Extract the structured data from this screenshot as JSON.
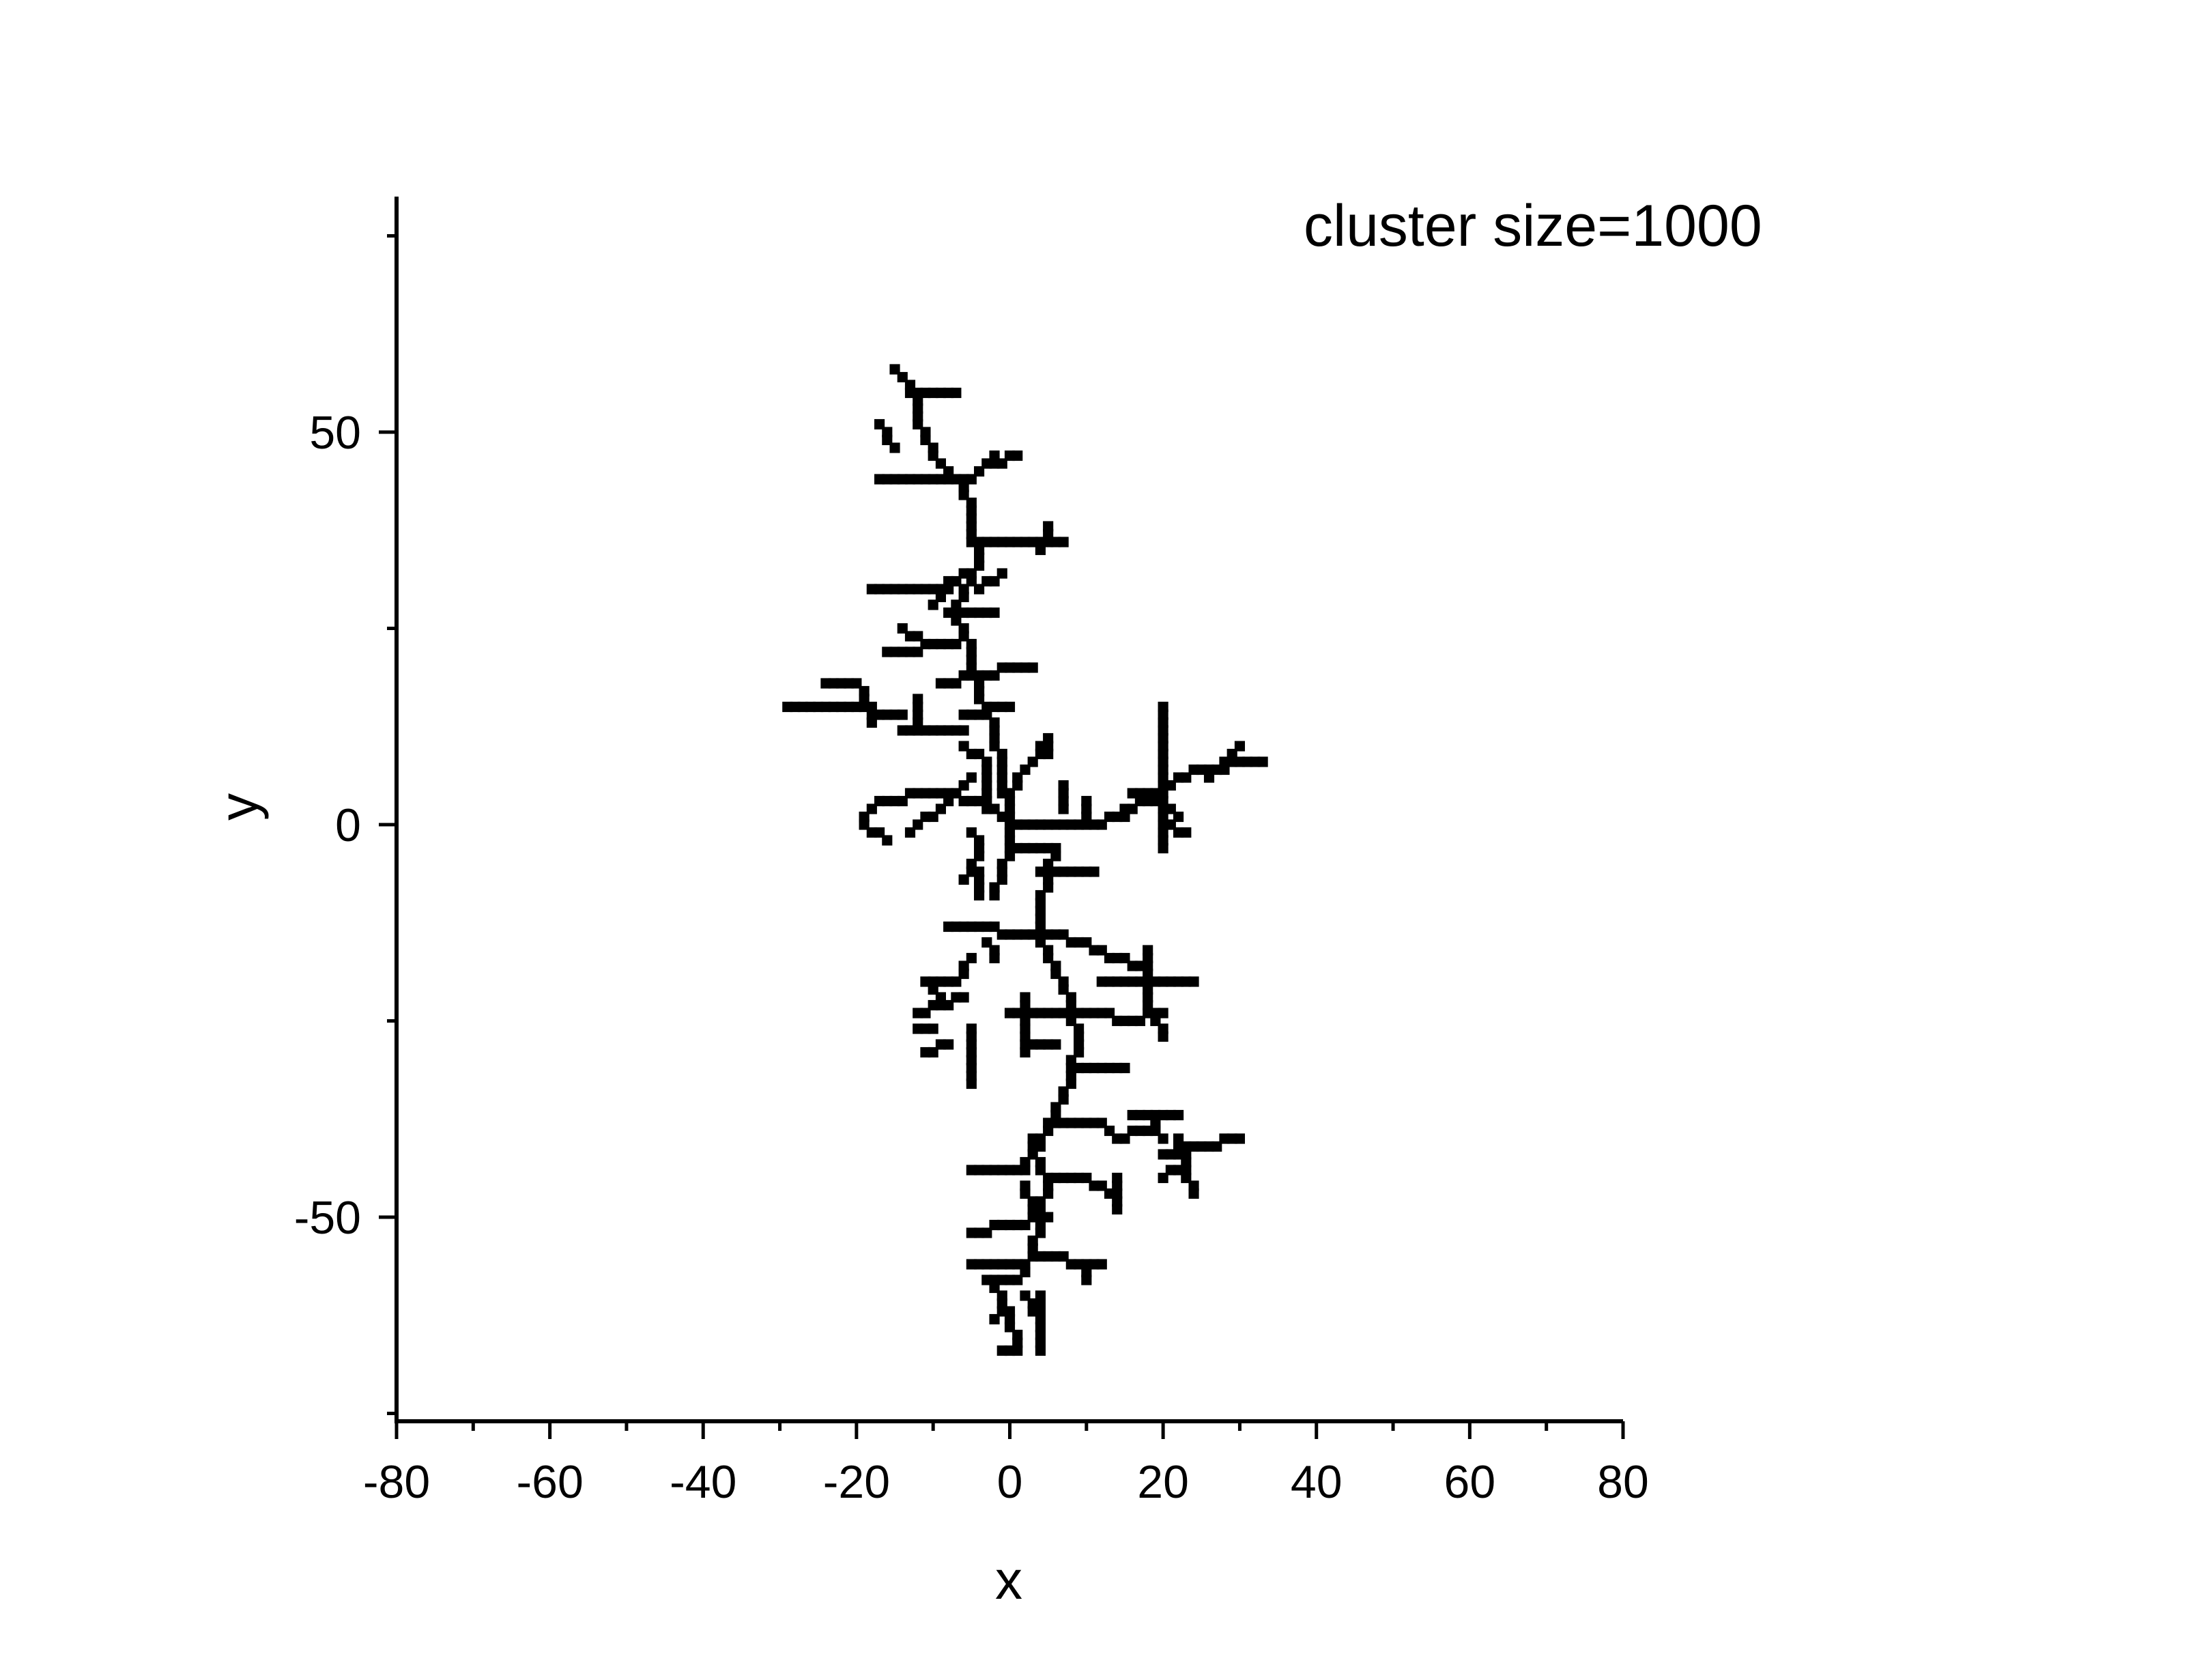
{
  "chart_data": {
    "type": "scatter",
    "title": "",
    "annotation": "cluster size=1000",
    "xlabel": "x",
    "ylabel": "y",
    "xlim": [
      -80,
      80
    ],
    "ylim": [
      -76,
      80
    ],
    "x_ticks": [
      -80,
      -60,
      -40,
      -20,
      0,
      20,
      40,
      60,
      80
    ],
    "x_tick_labels": [
      "-80",
      "-60",
      "-40",
      "-20",
      "0",
      "20",
      "40",
      "60",
      "80"
    ],
    "y_ticks": [
      -50,
      0,
      50
    ],
    "y_tick_labels": [
      "-50",
      "0",
      "50"
    ],
    "grid": false,
    "marker": "square",
    "marker_color": "#000000",
    "segments": [
      [
        0,
        0,
        0,
        1
      ],
      [
        0,
        0,
        12,
        0
      ],
      [
        12,
        0,
        20,
        4
      ],
      [
        20,
        4,
        24,
        7
      ],
      [
        24,
        7,
        33,
        8
      ],
      [
        26,
        6,
        30,
        10
      ],
      [
        20,
        0,
        20,
        15
      ],
      [
        16,
        4,
        22,
        1
      ],
      [
        20,
        0,
        23,
        -1
      ],
      [
        20,
        -3,
        20,
        0
      ],
      [
        15,
        1,
        18,
        4
      ],
      [
        7,
        2,
        7,
        5
      ],
      [
        10,
        0,
        10,
        3
      ],
      [
        0,
        0,
        -2,
        12
      ],
      [
        -2,
        12,
        -4,
        16
      ],
      [
        -4,
        16,
        -5,
        22
      ],
      [
        -5,
        22,
        -7,
        27
      ],
      [
        -7,
        27,
        -6,
        30
      ],
      [
        -6,
        30,
        -4,
        34
      ],
      [
        -4,
        34,
        -5,
        38
      ],
      [
        -5,
        38,
        -5,
        40
      ],
      [
        -5,
        40,
        -7,
        44
      ],
      [
        -7,
        44,
        -10,
        47
      ],
      [
        -10,
        47,
        -12,
        52
      ],
      [
        -12,
        52,
        -13,
        56
      ],
      [
        -13,
        56,
        -15,
        58
      ],
      [
        -12,
        55,
        -7,
        55
      ],
      [
        -17,
        51,
        -15,
        48
      ],
      [
        -17,
        44,
        -5,
        44
      ],
      [
        -5,
        44,
        -2,
        47
      ],
      [
        -2,
        46,
        1,
        47
      ],
      [
        -5,
        36,
        7,
        36
      ],
      [
        4,
        35,
        5,
        38
      ],
      [
        -18,
        30,
        -9,
        30
      ],
      [
        -9,
        30,
        -6,
        32
      ],
      [
        -4,
        30,
        -1,
        32
      ],
      [
        -10,
        28,
        -8,
        30
      ],
      [
        -8,
        27,
        -2,
        27
      ],
      [
        -16,
        22,
        -7,
        23
      ],
      [
        -14,
        25,
        -11,
        23
      ],
      [
        -9,
        18,
        -4,
        19
      ],
      [
        -4,
        18,
        0,
        20
      ],
      [
        0,
        20,
        3,
        20
      ],
      [
        -6,
        14,
        0,
        15
      ],
      [
        -29,
        15,
        -21,
        15
      ],
      [
        -21,
        15,
        -14,
        14
      ],
      [
        -24,
        18,
        -20,
        18
      ],
      [
        -19,
        17,
        -18,
        13
      ],
      [
        -14,
        12,
        -6,
        12
      ],
      [
        -12,
        16,
        -12,
        12
      ],
      [
        -6,
        10,
        -3,
        8
      ],
      [
        0,
        0,
        -4,
        3
      ],
      [
        -4,
        3,
        -10,
        4
      ],
      [
        -10,
        4,
        -17,
        3
      ],
      [
        -19,
        1,
        -17,
        3
      ],
      [
        -19,
        0,
        -16,
        -2
      ],
      [
        -13,
        -1,
        -9,
        2
      ],
      [
        -8,
        3,
        -5,
        6
      ],
      [
        -3,
        7,
        -3,
        2
      ],
      [
        0,
        4,
        2,
        7
      ],
      [
        2,
        7,
        5,
        11
      ],
      [
        5,
        11,
        5,
        9
      ],
      [
        0,
        0,
        0,
        -3
      ],
      [
        -5,
        -1,
        -4,
        -3
      ],
      [
        -4,
        -3,
        -6,
        -7
      ],
      [
        -4,
        -6,
        -4,
        -9
      ],
      [
        0,
        -3,
        -2,
        -9
      ],
      [
        0,
        -3,
        6,
        -3
      ],
      [
        6,
        -3,
        4,
        -10
      ],
      [
        4,
        -6,
        11,
        -6
      ],
      [
        4,
        -10,
        4,
        -14
      ],
      [
        -8,
        -13,
        4,
        -14
      ],
      [
        4,
        -14,
        10,
        -15
      ],
      [
        10,
        -15,
        13,
        -17
      ],
      [
        13,
        -17,
        18,
        -18
      ],
      [
        18,
        -16,
        18,
        -22
      ],
      [
        12,
        -20,
        24,
        -20
      ],
      [
        -3,
        -15,
        -2,
        -17
      ],
      [
        -5,
        -17,
        -7,
        -20
      ],
      [
        -7,
        -20,
        -11,
        -20
      ],
      [
        -11,
        -20,
        -9,
        -22
      ],
      [
        -12,
        -24,
        -6,
        -22
      ],
      [
        -10,
        -26,
        -12,
        -26
      ],
      [
        -11,
        -29,
        -8,
        -28
      ],
      [
        -5,
        -26,
        -5,
        -33
      ],
      [
        4,
        -15,
        6,
        -18
      ],
      [
        6,
        -18,
        8,
        -23
      ],
      [
        8,
        -23,
        9,
        -28
      ],
      [
        0,
        -24,
        10,
        -24
      ],
      [
        10,
        -24,
        16,
        -25
      ],
      [
        16,
        -25,
        20,
        -24
      ],
      [
        18,
        -22,
        20,
        -27
      ],
      [
        2,
        -22,
        2,
        -29
      ],
      [
        2,
        -28,
        6,
        -28
      ],
      [
        9,
        -28,
        8,
        -31
      ],
      [
        8,
        -31,
        15,
        -31
      ],
      [
        8,
        -31,
        7,
        -35
      ],
      [
        7,
        -35,
        5,
        -38
      ],
      [
        5,
        -38,
        12,
        -38
      ],
      [
        12,
        -38,
        14,
        -40
      ],
      [
        14,
        -40,
        18,
        -39
      ],
      [
        18,
        -37,
        20,
        -40
      ],
      [
        16,
        -37,
        22,
        -37
      ],
      [
        20,
        -42,
        30,
        -40
      ],
      [
        22,
        -40,
        24,
        -47
      ],
      [
        20,
        -45,
        22,
        -44
      ],
      [
        5,
        -38,
        3,
        -42
      ],
      [
        3,
        -42,
        5,
        -45
      ],
      [
        5,
        -45,
        4,
        -49
      ],
      [
        -5,
        -44,
        2,
        -44
      ],
      [
        2,
        -44,
        3,
        -40
      ],
      [
        5,
        -45,
        9,
        -45
      ],
      [
        9,
        -45,
        14,
        -47
      ],
      [
        14,
        -45,
        14,
        -49
      ],
      [
        2,
        -46,
        3,
        -50
      ],
      [
        -5,
        -52,
        5,
        -50
      ],
      [
        4,
        -49,
        3,
        -55
      ],
      [
        -5,
        -56,
        1,
        -56
      ],
      [
        3,
        -55,
        11,
        -56
      ],
      [
        11,
        -56,
        12,
        -56
      ],
      [
        9,
        -56,
        10,
        -58
      ],
      [
        3,
        -55,
        1,
        -58
      ],
      [
        1,
        -58,
        -3,
        -58
      ],
      [
        -3,
        -58,
        -1,
        -60
      ],
      [
        -1,
        -60,
        0,
        -63
      ],
      [
        0,
        -63,
        1,
        -67
      ],
      [
        -1,
        -67,
        1,
        -67
      ],
      [
        2,
        -60,
        3,
        -62
      ],
      [
        4,
        -60,
        4,
        -67
      ],
      [
        -2,
        -63,
        0,
        -62
      ]
    ]
  }
}
